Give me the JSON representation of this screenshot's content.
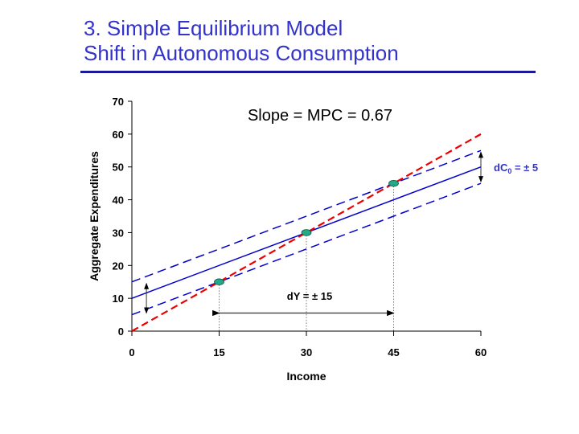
{
  "slide": {
    "title_line1": "3. Simple Equilibrium Model",
    "title_line2": "Shift in Autonomous Consumption"
  },
  "chart_data": {
    "type": "line",
    "xlabel": "Income",
    "ylabel": "Aggregate Expenditures",
    "xlim": [
      0,
      60
    ],
    "ylim": [
      0,
      70
    ],
    "xticks": [
      0,
      15,
      30,
      45,
      60
    ],
    "yticks": [
      0,
      10,
      20,
      30,
      40,
      50,
      60,
      70
    ],
    "grid": false,
    "series": [
      {
        "style": "solid",
        "color": "#0000cc",
        "x": [
          0,
          60
        ],
        "y": [
          10,
          50
        ]
      },
      {
        "style": "dashed",
        "color": "#0000cc",
        "x": [
          0,
          60
        ],
        "y": [
          15,
          55
        ]
      },
      {
        "style": "dashed",
        "color": "#0000cc",
        "x": [
          0,
          60
        ],
        "y": [
          5,
          45
        ]
      },
      {
        "style": "dashed",
        "color": "#ee0000",
        "x": [
          0,
          60
        ],
        "y": [
          0,
          60
        ]
      }
    ],
    "equilibrium_points": [
      {
        "x": 15,
        "y": 15
      },
      {
        "x": 30,
        "y": 30
      },
      {
        "x": 45,
        "y": 45
      }
    ],
    "point_color": "#22aa88",
    "annotations": {
      "slope": "Slope = MPC = 0.67",
      "dc0": "dC",
      "dc0_sub": "0",
      "dc0_rest": " = ± 5",
      "dy": "dY = ± 15"
    }
  }
}
